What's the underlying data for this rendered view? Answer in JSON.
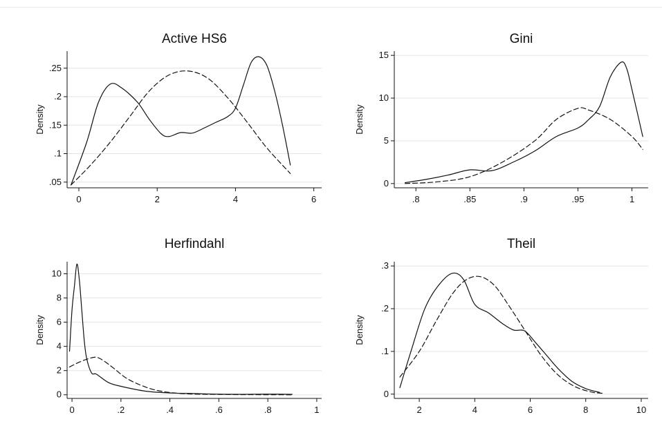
{
  "chart_data": [
    {
      "type": "line",
      "title": "Active HS6",
      "ylabel": "Density",
      "xlabel": "",
      "xlim": [
        -0.3,
        6.2
      ],
      "ylim": [
        0.04,
        0.28
      ],
      "xticks": [
        0,
        2,
        4,
        6
      ],
      "xtick_labels": [
        "0",
        "2",
        "4",
        "6"
      ],
      "yticks": [
        0.05,
        0.1,
        0.15,
        0.2,
        0.25
      ],
      "ytick_labels": [
        ".05",
        ".1",
        ".15",
        ".2",
        ".25"
      ],
      "grid": true,
      "series": [
        {
          "style": "solid",
          "x": [
            -0.2,
            0.2,
            0.5,
            0.8,
            1.1,
            1.5,
            1.8,
            2.1,
            2.3,
            2.6,
            2.9,
            3.2,
            3.5,
            3.8,
            4.0,
            4.2,
            4.4,
            4.6,
            4.8,
            5.0,
            5.2,
            5.4
          ],
          "y": [
            0.045,
            0.12,
            0.19,
            0.222,
            0.215,
            0.19,
            0.16,
            0.135,
            0.13,
            0.137,
            0.136,
            0.145,
            0.155,
            0.165,
            0.18,
            0.22,
            0.26,
            0.27,
            0.255,
            0.21,
            0.15,
            0.08
          ]
        },
        {
          "style": "dashed",
          "x": [
            -0.2,
            0.3,
            0.8,
            1.3,
            1.8,
            2.3,
            2.8,
            3.3,
            3.8,
            4.3,
            4.8,
            5.4
          ],
          "y": [
            0.045,
            0.08,
            0.12,
            0.165,
            0.21,
            0.238,
            0.245,
            0.232,
            0.198,
            0.155,
            0.11,
            0.065
          ]
        }
      ]
    },
    {
      "type": "line",
      "title": "Gini",
      "ylabel": "Density",
      "xlabel": "",
      "xlim": [
        0.78,
        1.015
      ],
      "ylim": [
        -0.5,
        15.5
      ],
      "xticks": [
        0.8,
        0.85,
        0.9,
        0.95,
        1
      ],
      "xtick_labels": [
        ".8",
        ".85",
        ".9",
        ".95",
        "1"
      ],
      "yticks": [
        0,
        5,
        10,
        15
      ],
      "ytick_labels": [
        "0",
        "5",
        "10",
        "15"
      ],
      "grid": true,
      "series": [
        {
          "style": "solid",
          "x": [
            0.79,
            0.81,
            0.83,
            0.85,
            0.87,
            0.89,
            0.91,
            0.93,
            0.95,
            0.96,
            0.97,
            0.98,
            0.99,
            0.995,
            1.0,
            1.01
          ],
          "y": [
            0.1,
            0.5,
            1.0,
            1.6,
            1.5,
            2.5,
            3.8,
            5.5,
            6.5,
            7.5,
            9.0,
            12.5,
            14.2,
            13.5,
            11.0,
            5.5
          ]
        },
        {
          "style": "dashed",
          "x": [
            0.79,
            0.82,
            0.85,
            0.88,
            0.91,
            0.93,
            0.95,
            0.96,
            0.98,
            1.0,
            1.01
          ],
          "y": [
            0.0,
            0.2,
            0.8,
            2.5,
            5.0,
            7.5,
            8.8,
            8.6,
            7.5,
            5.5,
            4.0
          ]
        }
      ]
    },
    {
      "type": "line",
      "title": "Herfindahl",
      "ylabel": "Density",
      "xlabel": "",
      "xlim": [
        -0.02,
        1.02
      ],
      "ylim": [
        -0.3,
        11.0
      ],
      "xticks": [
        0,
        0.2,
        0.4,
        0.6,
        0.8,
        1
      ],
      "xtick_labels": [
        "0",
        ".2",
        ".4",
        ".6",
        ".8",
        "1"
      ],
      "yticks": [
        0,
        2,
        4,
        6,
        8,
        10
      ],
      "ytick_labels": [
        "0",
        "2",
        "4",
        "6",
        "8",
        "10"
      ],
      "grid": true,
      "series": [
        {
          "style": "solid",
          "x": [
            -0.01,
            0.0,
            0.01,
            0.02,
            0.03,
            0.04,
            0.05,
            0.06,
            0.08,
            0.1,
            0.15,
            0.2,
            0.3,
            0.4,
            0.5,
            0.6,
            0.7,
            0.8,
            0.9
          ],
          "y": [
            3.6,
            7.0,
            9.0,
            10.8,
            9.5,
            7.0,
            4.5,
            3.0,
            1.8,
            1.7,
            1.0,
            0.7,
            0.3,
            0.15,
            0.1,
            0.05,
            0.04,
            0.05,
            0.04
          ]
        },
        {
          "style": "dashed",
          "x": [
            -0.01,
            0.03,
            0.07,
            0.1,
            0.13,
            0.17,
            0.22,
            0.28,
            0.35,
            0.45,
            0.6,
            0.75,
            0.9
          ],
          "y": [
            2.3,
            2.7,
            3.0,
            3.1,
            2.8,
            2.2,
            1.4,
            0.8,
            0.35,
            0.1,
            0.03,
            0.01,
            0.0
          ]
        }
      ]
    },
    {
      "type": "line",
      "title": "Theil",
      "ylabel": "Density",
      "xlabel": "",
      "xlim": [
        1.1,
        10.25
      ],
      "ylim": [
        -0.01,
        0.31
      ],
      "xticks": [
        2,
        4,
        6,
        8,
        10
      ],
      "xtick_labels": [
        "2",
        "4",
        "6",
        "8",
        "10"
      ],
      "yticks": [
        0,
        0.1,
        0.2,
        0.3
      ],
      "ytick_labels": [
        "0",
        ".1",
        ".2",
        ".3"
      ],
      "grid": true,
      "series": [
        {
          "style": "solid",
          "x": [
            1.3,
            1.7,
            2.2,
            2.7,
            3.2,
            3.6,
            4.0,
            4.5,
            5.0,
            5.4,
            5.8,
            6.2,
            6.6,
            7.0,
            7.5,
            8.0,
            8.5
          ],
          "y": [
            0.015,
            0.1,
            0.2,
            0.255,
            0.283,
            0.268,
            0.21,
            0.19,
            0.165,
            0.15,
            0.148,
            0.12,
            0.09,
            0.06,
            0.03,
            0.013,
            0.004
          ]
        },
        {
          "style": "dashed",
          "x": [
            1.3,
            2.0,
            2.6,
            3.2,
            3.7,
            4.2,
            4.7,
            5.2,
            5.8,
            6.4,
            7.0,
            7.6,
            8.2,
            8.6
          ],
          "y": [
            0.04,
            0.1,
            0.17,
            0.235,
            0.268,
            0.275,
            0.255,
            0.21,
            0.15,
            0.09,
            0.045,
            0.018,
            0.005,
            0.002
          ]
        }
      ]
    }
  ]
}
